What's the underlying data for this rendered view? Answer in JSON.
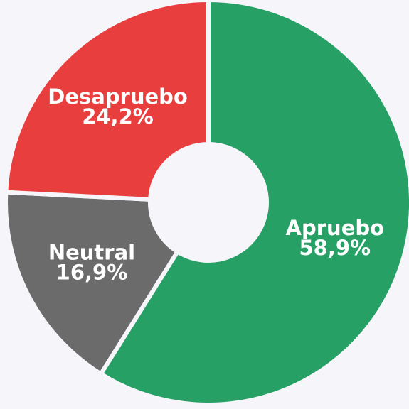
{
  "chart_data": {
    "type": "donut",
    "categories": [
      "Apruebo",
      "Neutral",
      "Desapruebo"
    ],
    "values": [
      58.9,
      16.9,
      24.2
    ],
    "value_labels": [
      "58,9%",
      "16,9%",
      "24,2%"
    ],
    "colors": [
      "#26a065",
      "#6b6b6b",
      "#e83e3e"
    ]
  }
}
